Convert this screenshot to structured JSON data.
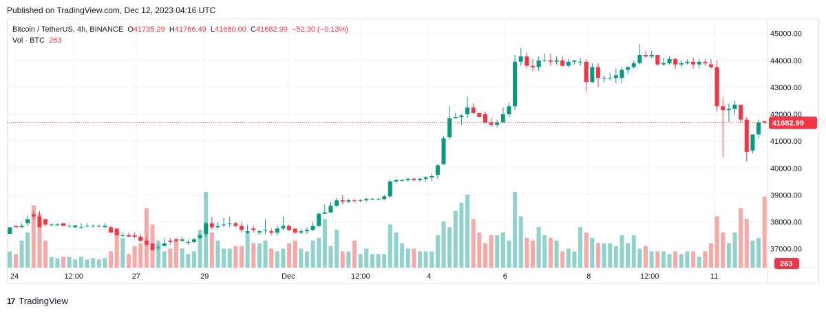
{
  "published": "Published on TradingView.com, Dec 12, 2023 04:16 UTC",
  "legend": {
    "symbol": "Bitcoin / TetherUS, 4h, BINANCE",
    "o_label": "O",
    "o": "41735.29",
    "h_label": "H",
    "h": "41766.49",
    "l_label": "L",
    "l": "41680.00",
    "c_label": "C",
    "c": "41682.99",
    "change": "−52.30 (−0.13%)",
    "vol_label": "Vol · BTC",
    "vol": "263"
  },
  "footer": {
    "brand": "TradingView",
    "logo_text": "17"
  },
  "colors": {
    "up": "#089981",
    "down": "#f23645",
    "vol_up": "#92d2cc",
    "vol_down": "#f7a9a7"
  },
  "chart_data": {
    "type": "candlestick",
    "ylim": [
      36300,
      45300
    ],
    "y_ticks": [
      "45000.00",
      "44000.00",
      "43000.00",
      "42000.00",
      "41000.00",
      "40000.00",
      "39000.00",
      "38000.00",
      "37000.00"
    ],
    "x_ticks": [
      "24",
      "12:00",
      "27",
      "29",
      "Dec",
      "12:00",
      "4",
      "6",
      "8",
      "12:00",
      "11"
    ],
    "last_price_label": "41682.99",
    "last_price": 41682.99,
    "volume_label": "263",
    "candles": [
      [
        37550,
        37560,
        37800,
        37800,
        60
      ],
      [
        37850,
        37800,
        37820,
        37800,
        50
      ],
      [
        37800,
        37800,
        37950,
        37850,
        100
      ],
      [
        37950,
        37850,
        38250,
        38100,
        130
      ],
      [
        38280,
        38100,
        38400,
        38200,
        230
      ],
      [
        38200,
        37840,
        38400,
        37800,
        200
      ],
      [
        38100,
        37850,
        38100,
        37900,
        100
      ],
      [
        37900,
        37830,
        37950,
        37900,
        40
      ],
      [
        37900,
        37850,
        37950,
        37900,
        35
      ],
      [
        37950,
        37850,
        37950,
        37850,
        40
      ],
      [
        37850,
        37800,
        37900,
        37850,
        40
      ],
      [
        37800,
        37780,
        37850,
        37870,
        30
      ],
      [
        37800,
        37750,
        37950,
        37800,
        40
      ],
      [
        37850,
        37800,
        37950,
        37850,
        30
      ],
      [
        37850,
        37800,
        37900,
        37850,
        35
      ],
      [
        37850,
        37800,
        37900,
        37850,
        30
      ],
      [
        37800,
        37800,
        37950,
        37850,
        35
      ],
      [
        37800,
        37600,
        37850,
        37600,
        60
      ],
      [
        37750,
        37550,
        37650,
        37500,
        130
      ],
      [
        37500,
        37450,
        37600,
        37500,
        110
      ],
      [
        37500,
        37450,
        37600,
        37450,
        50
      ],
      [
        37500,
        37400,
        37600,
        37450,
        80
      ],
      [
        37450,
        37250,
        37550,
        37300,
        90
      ],
      [
        37300,
        37100,
        37450,
        37150,
        220
      ],
      [
        37200,
        37000,
        37100,
        36950,
        160
      ],
      [
        37050,
        36950,
        37150,
        37050,
        100
      ],
      [
        37100,
        37100,
        37400,
        37200,
        60
      ],
      [
        37300,
        37150,
        37400,
        37250,
        70
      ],
      [
        37350,
        37250,
        37400,
        37300,
        100
      ],
      [
        37300,
        37250,
        37450,
        37350,
        70
      ],
      [
        37250,
        37150,
        37350,
        37250,
        50
      ],
      [
        37250,
        37200,
        37400,
        37350,
        60
      ],
      [
        37400,
        37350,
        37550,
        37500,
        140
      ],
      [
        37550,
        37450,
        38000,
        37950,
        280
      ],
      [
        37950,
        37700,
        38200,
        37800,
        130
      ],
      [
        37800,
        37750,
        38000,
        37850,
        100
      ],
      [
        37900,
        37800,
        38150,
        37900,
        70
      ],
      [
        37950,
        37800,
        38200,
        37950,
        70
      ],
      [
        37950,
        37800,
        38000,
        37850,
        80
      ],
      [
        37850,
        37600,
        38000,
        37700,
        80
      ],
      [
        37600,
        37550,
        37900,
        37650,
        130
      ],
      [
        37750,
        37600,
        37850,
        37700,
        90
      ],
      [
        37600,
        37500,
        37700,
        37650,
        90
      ],
      [
        37700,
        37550,
        38100,
        37700,
        100
      ],
      [
        37650,
        37500,
        37750,
        37600,
        70
      ],
      [
        37600,
        37500,
        37850,
        37750,
        60
      ],
      [
        37750,
        37700,
        38200,
        37850,
        70
      ],
      [
        37850,
        37650,
        37900,
        37700,
        90
      ],
      [
        37750,
        37550,
        37700,
        37600,
        100
      ],
      [
        37600,
        37550,
        37750,
        37650,
        70
      ],
      [
        37650,
        37550,
        37800,
        37700,
        60
      ],
      [
        37700,
        37650,
        38000,
        37850,
        100
      ],
      [
        37850,
        37800,
        38350,
        38300,
        110
      ],
      [
        38300,
        38300,
        38650,
        38350,
        180
      ],
      [
        38350,
        38450,
        38750,
        38600,
        80
      ],
      [
        38600,
        38550,
        38900,
        38800,
        140
      ],
      [
        38800,
        38650,
        39000,
        38750,
        60
      ],
      [
        38750,
        38700,
        38850,
        38800,
        60
      ],
      [
        38800,
        38700,
        38850,
        38780,
        100
      ],
      [
        38800,
        38750,
        38850,
        38800,
        50
      ],
      [
        38800,
        38750,
        38900,
        38850,
        70
      ],
      [
        38850,
        38800,
        38900,
        38850,
        50
      ],
      [
        38850,
        38800,
        38900,
        38850,
        50
      ],
      [
        38850,
        38800,
        39000,
        38950,
        50
      ],
      [
        38950,
        38900,
        39550,
        39500,
        160
      ],
      [
        39500,
        39450,
        39600,
        39550,
        130
      ],
      [
        39550,
        39500,
        39600,
        39550,
        90
      ],
      [
        39550,
        39500,
        39650,
        39600,
        70
      ],
      [
        39600,
        39500,
        39650,
        39550,
        70
      ],
      [
        39550,
        39500,
        39650,
        39600,
        60
      ],
      [
        39600,
        39500,
        39700,
        39650,
        60
      ],
      [
        39650,
        39500,
        39800,
        39700,
        60
      ],
      [
        39750,
        39600,
        40150,
        40100,
        120
      ],
      [
        40150,
        40100,
        41200,
        41100,
        170
      ],
      [
        41150,
        41050,
        42300,
        41850,
        150
      ],
      [
        41850,
        41850,
        42050,
        41900,
        210
      ],
      [
        41900,
        41600,
        42000,
        41950,
        240
      ],
      [
        42000,
        41850,
        42650,
        42250,
        270
      ],
      [
        42250,
        42000,
        42400,
        42050,
        180
      ],
      [
        42050,
        41950,
        42000,
        41900,
        130
      ],
      [
        42000,
        41650,
        42100,
        41700,
        90
      ],
      [
        41700,
        41550,
        41850,
        41600,
        120
      ],
      [
        41600,
        41500,
        41800,
        41700,
        120
      ],
      [
        41700,
        41650,
        42250,
        42000,
        130
      ],
      [
        42000,
        41900,
        42450,
        42300,
        100
      ],
      [
        42300,
        42150,
        44200,
        43950,
        280
      ],
      [
        43950,
        43800,
        44450,
        44150,
        190
      ],
      [
        44150,
        43700,
        44300,
        43800,
        110
      ],
      [
        43800,
        43600,
        44050,
        43750,
        100
      ],
      [
        43750,
        43600,
        44150,
        44000,
        150
      ],
      [
        44000,
        43950,
        44250,
        44000,
        120
      ],
      [
        44000,
        43800,
        44250,
        43950,
        110
      ],
      [
        43950,
        43850,
        44150,
        44000,
        100
      ],
      [
        44000,
        43750,
        44150,
        43800,
        60
      ],
      [
        43800,
        43750,
        44050,
        43950,
        70
      ],
      [
        43950,
        43850,
        44000,
        44000,
        60
      ],
      [
        43950,
        43800,
        44100,
        43950,
        150
      ],
      [
        43950,
        42850,
        44050,
        43200,
        130
      ],
      [
        43200,
        43150,
        43900,
        43750,
        110
      ],
      [
        43750,
        43000,
        43900,
        43350,
        90
      ],
      [
        43350,
        43200,
        43450,
        43350,
        90
      ],
      [
        43350,
        43250,
        43550,
        43350,
        90
      ],
      [
        43350,
        43150,
        43700,
        43450,
        80
      ],
      [
        43350,
        43150,
        43750,
        43650,
        120
      ],
      [
        43650,
        43500,
        43800,
        43750,
        90
      ],
      [
        43750,
        43700,
        44000,
        43900,
        120
      ],
      [
        43900,
        43850,
        44600,
        44200,
        70
      ],
      [
        44200,
        44100,
        44350,
        44150,
        80
      ],
      [
        44150,
        44100,
        44350,
        44200,
        60
      ],
      [
        44200,
        43800,
        44200,
        43850,
        60
      ],
      [
        43850,
        43800,
        44100,
        43900,
        60
      ],
      [
        43900,
        43850,
        44150,
        44050,
        50
      ],
      [
        44050,
        43700,
        44100,
        43850,
        60
      ],
      [
        43850,
        43750,
        44000,
        43900,
        50
      ],
      [
        43900,
        43850,
        44050,
        43950,
        60
      ],
      [
        43950,
        43700,
        44100,
        43850,
        60
      ],
      [
        43850,
        43700,
        44050,
        43950,
        40
      ],
      [
        43950,
        43800,
        44050,
        43900,
        60
      ],
      [
        43850,
        43700,
        44050,
        43750,
        90
      ],
      [
        43750,
        42100,
        44000,
        42300,
        190
      ],
      [
        42300,
        40400,
        42650,
        42150,
        130
      ],
      [
        42150,
        41700,
        42400,
        42200,
        90
      ],
      [
        42200,
        42000,
        42500,
        42350,
        130
      ],
      [
        42350,
        41700,
        42350,
        41800,
        220
      ],
      [
        41800,
        40250,
        41900,
        40600,
        180
      ],
      [
        40650,
        40550,
        41200,
        41250,
        100
      ],
      [
        41250,
        41100,
        41800,
        41700,
        110
      ],
      [
        41735,
        41680,
        41766,
        41682,
        263
      ]
    ]
  }
}
